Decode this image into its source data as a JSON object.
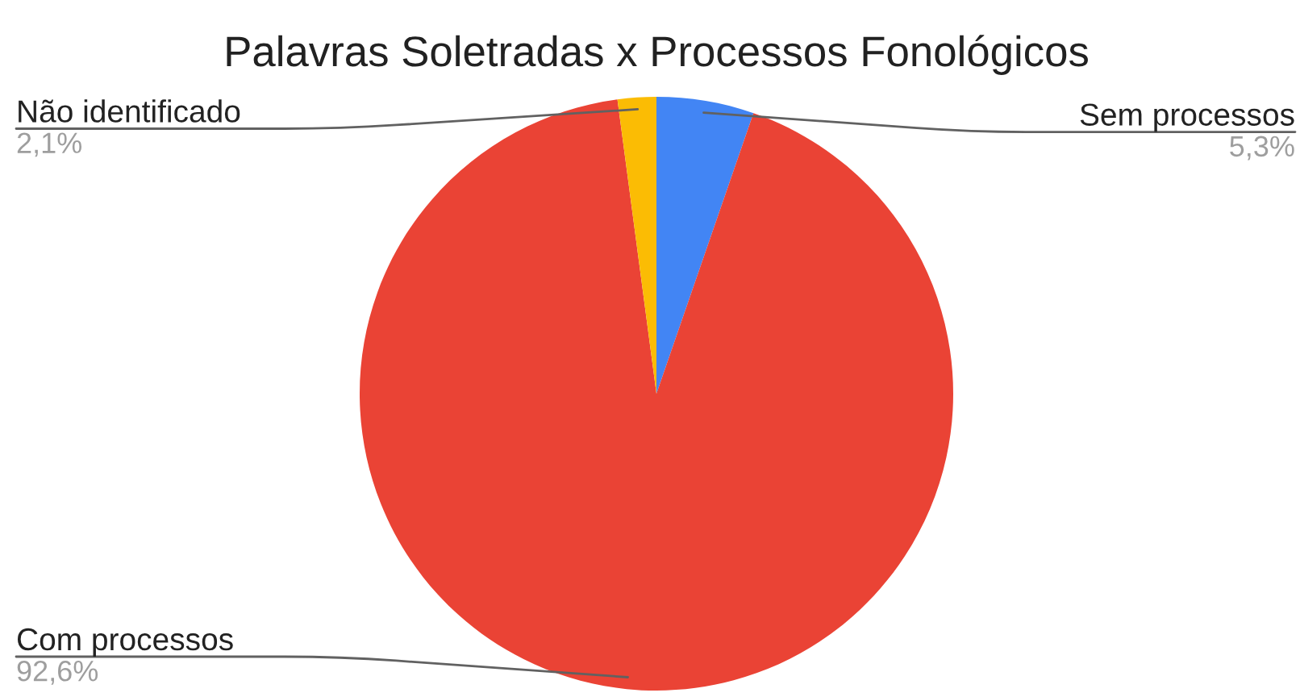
{
  "chart_data": {
    "type": "pie",
    "title": "Palavras Soletradas x Processos Fonológicos",
    "categories": [
      "Sem processos",
      "Com processos",
      "Não identificado"
    ],
    "values": [
      5.3,
      92.6,
      2.1
    ],
    "value_labels": [
      "5,3%",
      "92,6%",
      "2,1%"
    ],
    "colors": [
      "#4285f4",
      "#ea4335",
      "#fbbc04"
    ]
  }
}
